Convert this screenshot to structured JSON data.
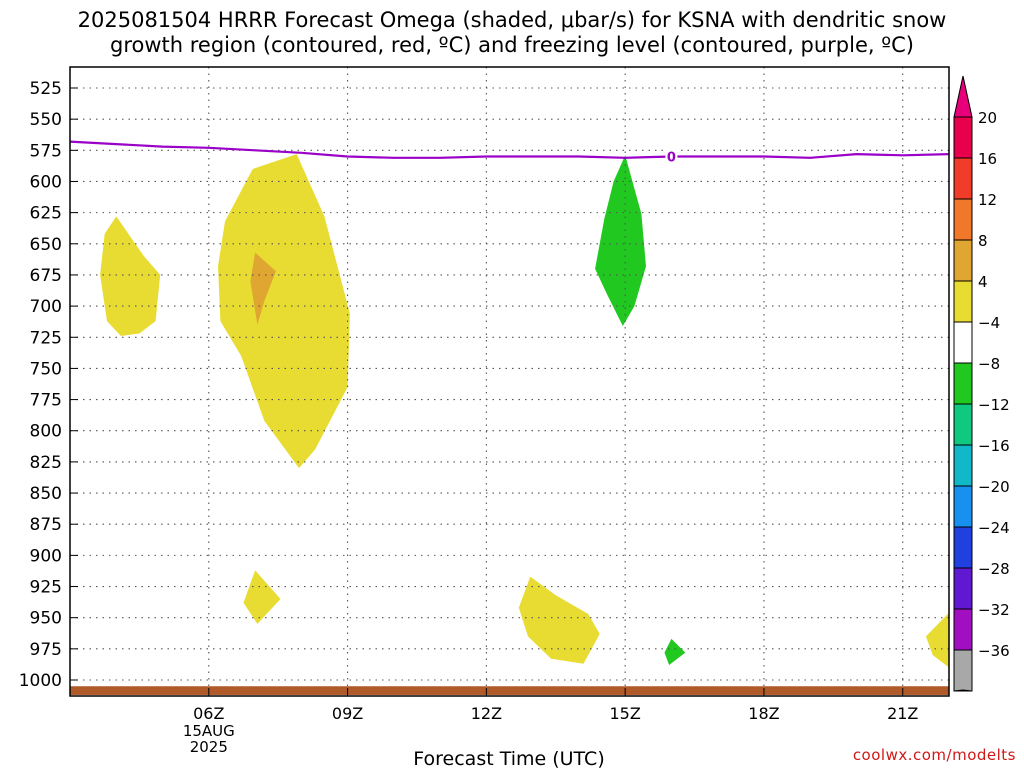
{
  "title": {
    "line1": "2025081504 HRRR Forecast Omega (shaded, μbar/s) for KSNA with dendritic snow",
    "line2": "growth region (contoured, red, ºC) and freezing level (contoured, purple, ºC)"
  },
  "credit": "coolwx.com/modelts",
  "chart_data": {
    "type": "contour",
    "xlabel": "Forecast Time (UTC)",
    "ylabel": "",
    "x_range_hours_utc": [
      3,
      22
    ],
    "y_axis": "pressure (hPa), inverted",
    "ylim": [
      1012,
      512
    ],
    "x_ticks": [
      {
        "hour": 6,
        "label": "06Z",
        "sub": [
          "15AUG",
          "2025"
        ]
      },
      {
        "hour": 9,
        "label": "09Z",
        "sub": []
      },
      {
        "hour": 12,
        "label": "12Z",
        "sub": []
      },
      {
        "hour": 15,
        "label": "15Z",
        "sub": []
      },
      {
        "hour": 18,
        "label": "18Z",
        "sub": []
      },
      {
        "hour": 21,
        "label": "21Z",
        "sub": []
      }
    ],
    "y_ticks": [
      "525",
      "550",
      "575",
      "600",
      "625",
      "650",
      "675",
      "700",
      "725",
      "750",
      "775",
      "800",
      "825",
      "850",
      "875",
      "900",
      "925",
      "950",
      "975",
      "1000"
    ],
    "grid": true,
    "freezing_level": {
      "color": "#9a00c8",
      "label": "0",
      "label_at": {
        "hour": 16.0,
        "p": 580
      },
      "points": [
        [
          3,
          568
        ],
        [
          4,
          570
        ],
        [
          5,
          572
        ],
        [
          6,
          573
        ],
        [
          7,
          575
        ],
        [
          8,
          577
        ],
        [
          9,
          580
        ],
        [
          10,
          581
        ],
        [
          11,
          581
        ],
        [
          12,
          580
        ],
        [
          13,
          580
        ],
        [
          14,
          580
        ],
        [
          15,
          581
        ],
        [
          16,
          580
        ],
        [
          17,
          580
        ],
        [
          18,
          580
        ],
        [
          19,
          581
        ],
        [
          20,
          578
        ],
        [
          21,
          579
        ],
        [
          22,
          578
        ]
      ]
    },
    "surface_band": {
      "color": "#b05a2a",
      "p_top": 1005,
      "p_bottom": 1012
    },
    "omega_regions": [
      {
        "value_bin": "4 to 8",
        "color": "#e8dc32",
        "points": [
          [
            4.0,
            628
          ],
          [
            4.6,
            660
          ],
          [
            4.95,
            675
          ],
          [
            4.85,
            712
          ],
          [
            4.5,
            722
          ],
          [
            4.1,
            724
          ],
          [
            3.8,
            712
          ],
          [
            3.65,
            675
          ],
          [
            3.75,
            642
          ]
        ]
      },
      {
        "value_bin": "4 to 8",
        "color": "#e8dc32",
        "points": [
          [
            6.95,
            590
          ],
          [
            7.9,
            578
          ],
          [
            8.5,
            628
          ],
          [
            9.05,
            706
          ],
          [
            9.0,
            765
          ],
          [
            8.3,
            815
          ],
          [
            7.95,
            830
          ],
          [
            7.2,
            792
          ],
          [
            6.7,
            740
          ],
          [
            6.25,
            712
          ],
          [
            6.2,
            668
          ],
          [
            6.35,
            632
          ]
        ]
      },
      {
        "value_bin": "8 to 12",
        "color": "#e0a632",
        "points": [
          [
            7.0,
            657
          ],
          [
            7.45,
            672
          ],
          [
            7.2,
            696
          ],
          [
            7.05,
            715
          ],
          [
            6.9,
            680
          ]
        ]
      },
      {
        "value_bin": "4 to 8",
        "color": "#e8dc32",
        "points": [
          [
            7.0,
            912
          ],
          [
            7.55,
            935
          ],
          [
            7.05,
            955
          ],
          [
            6.75,
            938
          ]
        ]
      },
      {
        "value_bin": "4 to 8",
        "color": "#e8dc32",
        "points": [
          [
            12.95,
            917
          ],
          [
            13.5,
            932
          ],
          [
            14.2,
            947
          ],
          [
            14.45,
            963
          ],
          [
            14.1,
            987
          ],
          [
            13.4,
            983
          ],
          [
            12.9,
            965
          ],
          [
            12.7,
            942
          ]
        ]
      },
      {
        "value_bin": "4 to 8",
        "color": "#e8dc32",
        "points": [
          [
            22.0,
            946
          ],
          [
            22.0,
            990
          ],
          [
            21.65,
            980
          ],
          [
            21.5,
            965
          ]
        ]
      },
      {
        "value_bin": "-8 to -4",
        "color": "#20c820",
        "points": [
          [
            15.0,
            579
          ],
          [
            15.35,
            626
          ],
          [
            15.45,
            668
          ],
          [
            15.2,
            700
          ],
          [
            14.95,
            716
          ],
          [
            14.6,
            690
          ],
          [
            14.35,
            670
          ],
          [
            14.55,
            630
          ],
          [
            14.75,
            600
          ]
        ]
      },
      {
        "value_bin": "-8 to -4",
        "color": "#20c820",
        "points": [
          [
            16.0,
            967
          ],
          [
            16.3,
            978
          ],
          [
            15.95,
            988
          ],
          [
            15.85,
            978
          ]
        ]
      }
    ],
    "colorbar": {
      "labels": [
        "20",
        "16",
        "12",
        "8",
        "4",
        "−4",
        "−8",
        "−12",
        "−16",
        "−20",
        "−24",
        "−28",
        "−32",
        "−36"
      ],
      "colors": [
        "#e8004c",
        "#f03c28",
        "#f07828",
        "#e0a632",
        "#e8dc32",
        "#ffffff",
        "#20c820",
        "#10c880",
        "#10b8c8",
        "#1890f0",
        "#2040e0",
        "#6018d0",
        "#a010c0",
        "#a8a8a8"
      ],
      "top_arrow_color": "#e8007a",
      "bottom_arrow_color": "#000000"
    }
  }
}
